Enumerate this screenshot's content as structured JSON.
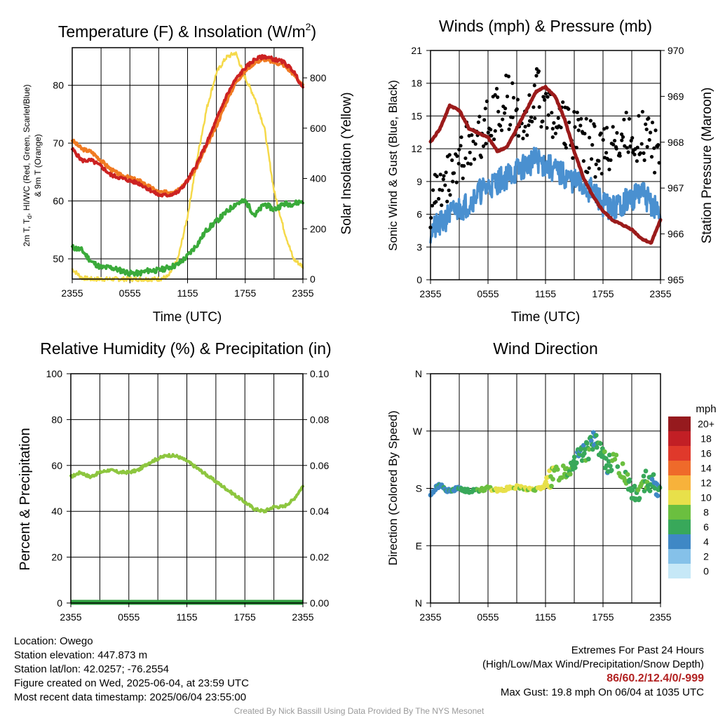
{
  "colors": {
    "red": "#cc2222",
    "orange": "#f07a22",
    "green": "#3aaa3a",
    "yellow": "#f5d94a",
    "blue": "#4a90d0",
    "black": "#000000",
    "maroon": "#9b1b1b",
    "rh": "#8dc63f",
    "precip": "#2e9e3e"
  },
  "x_ticks": [
    "2355",
    "0555",
    "1155",
    "1755",
    "2355"
  ],
  "charts": {
    "temp": {
      "title": "Temperature (F) & Insolation (W/m",
      "title_sup": "2",
      "title_close": ")",
      "ylabel_left_line1": "2m T, T",
      "ylabel_left_sub": "d",
      "ylabel_left_line1_rest": ", HI/WC (Red, Green, Scarlet/Blue)",
      "ylabel_left_line2": "& 9m T (Orange)",
      "ylabel_right": "Solar Insolation (Yellow)",
      "xlabel": "Time (UTC)",
      "left_ticks": [
        "50",
        "60",
        "70",
        "80"
      ],
      "right_ticks": [
        "0",
        "200",
        "400",
        "600",
        "800"
      ]
    },
    "wind": {
      "title": "Winds (mph) & Pressure (mb)",
      "ylabel_left": "Sonic Wind & Gust (Blue, Black)",
      "ylabel_right": "Station Pressure (Maroon)",
      "xlabel": "Time (UTC)",
      "left_ticks": [
        "0",
        "3",
        "6",
        "9",
        "12",
        "15",
        "18",
        "21"
      ],
      "right_ticks": [
        "965",
        "966",
        "967",
        "968",
        "969",
        "970"
      ]
    },
    "rh": {
      "title": "Relative Humidity (%) & Precipitation (in)",
      "ylabel_left": "Percent & Precipitation",
      "left_ticks": [
        "0",
        "20",
        "40",
        "60",
        "80",
        "100"
      ],
      "right_ticks": [
        "0.00",
        "0.02",
        "0.04",
        "0.06",
        "0.08",
        "0.10"
      ]
    },
    "dir": {
      "title": "Wind Direction",
      "ylabel_left": "Direction (Colored By Speed)",
      "left_ticks": [
        "N",
        "E",
        "S",
        "W",
        "N"
      ],
      "legend_title": "mph",
      "legend_labels": [
        "0",
        "2",
        "4",
        "6",
        "8",
        "10",
        "12",
        "14",
        "16",
        "18",
        "20+"
      ],
      "legend_colors": [
        "#c6e8f7",
        "#85c1e9",
        "#3f88c5",
        "#38a85a",
        "#6bbf3f",
        "#e8e04a",
        "#f7b23b",
        "#ef6a2a",
        "#e0392b",
        "#c21f25",
        "#961a1e"
      ]
    }
  },
  "chart_data": [
    {
      "type": "line",
      "title": "Temperature (F) & Insolation (W/m2)",
      "xlabel": "Time (UTC)",
      "ylabel": "2m T, Td, HI/WC (Red, Green, Scarlet/Blue) & 9m T (Orange)",
      "y2label": "Solar Insolation (Yellow)",
      "x": [
        0,
        1,
        2,
        3,
        4,
        5,
        6,
        7,
        8,
        9,
        10,
        11,
        12,
        13,
        14,
        15,
        16,
        17,
        18,
        19,
        20,
        21,
        22,
        23,
        24
      ],
      "x_tick_labels": [
        "2355",
        "0555",
        "1155",
        "1755",
        "2355"
      ],
      "ylim": [
        46.5,
        86.5
      ],
      "y2lim": [
        0,
        920
      ],
      "series": [
        {
          "name": "2m T (Red)",
          "axis": "left",
          "values": [
            69,
            67,
            67,
            66,
            64.5,
            64,
            63.5,
            63,
            62,
            61,
            61,
            61.5,
            63.5,
            66.5,
            70,
            74,
            78,
            81,
            83,
            84.5,
            85,
            84.5,
            84,
            82.5,
            79.5
          ]
        },
        {
          "name": "9m T (Orange)",
          "axis": "left",
          "values": [
            70.5,
            69,
            68.5,
            67,
            65.5,
            64.5,
            64,
            63.5,
            62.5,
            61.5,
            61.5,
            62,
            63.5,
            66,
            69.5,
            73,
            77,
            80.5,
            82.5,
            84,
            84.5,
            84,
            83.5,
            82,
            80
          ]
        },
        {
          "name": "Td (Green)",
          "axis": "left",
          "values": [
            52,
            51.5,
            49.5,
            48.5,
            48.5,
            48,
            47.5,
            47.5,
            48,
            48,
            48.5,
            49,
            50.5,
            52.5,
            55,
            56.5,
            58,
            59.5,
            60,
            57.5,
            59.5,
            58.5,
            59.5,
            59.5,
            60
          ]
        },
        {
          "name": "Solar Insolation (Yellow)",
          "axis": "right",
          "values": [
            40,
            5,
            0,
            0,
            0,
            0,
            0,
            0,
            0,
            0,
            10,
            80,
            250,
            480,
            680,
            820,
            880,
            900,
            800,
            720,
            600,
            350,
            200,
            80,
            50
          ]
        }
      ]
    },
    {
      "type": "scatter",
      "title": "Winds (mph) & Pressure (mb)",
      "xlabel": "Time (UTC)",
      "ylabel": "Sonic Wind & Gust (Blue, Black)",
      "y2label": "Station Pressure (Maroon)",
      "x": [
        0,
        1,
        2,
        3,
        4,
        5,
        6,
        7,
        8,
        9,
        10,
        11,
        12,
        13,
        14,
        15,
        16,
        17,
        18,
        19,
        20,
        21,
        22,
        23,
        24
      ],
      "x_tick_labels": [
        "2355",
        "0555",
        "1155",
        "1755",
        "2355"
      ],
      "ylim": [
        0,
        21
      ],
      "y2lim": [
        965,
        970
      ],
      "series": [
        {
          "name": "Sonic Wind (Blue)",
          "axis": "left",
          "values": [
            4.5,
            5,
            6,
            6.5,
            7,
            8,
            8.5,
            9,
            9.5,
            10,
            10.5,
            11,
            10.5,
            10,
            9.5,
            9,
            8.5,
            8,
            7,
            6.5,
            7,
            7.5,
            8,
            7,
            6
          ]
        },
        {
          "name": "Gust (Black)",
          "axis": "left",
          "values": [
            6.5,
            8,
            9.5,
            11,
            12.5,
            13.5,
            14,
            15.5,
            16.5,
            15,
            15.5,
            17,
            16,
            15,
            14,
            13,
            12.5,
            12,
            11.5,
            12.5,
            13,
            13.5,
            13,
            12.5,
            11.5
          ]
        },
        {
          "name": "Station Pressure (Maroon)",
          "axis": "right",
          "values": [
            968,
            968.3,
            968.8,
            968.7,
            968.3,
            968.2,
            968.1,
            967.8,
            967.9,
            968.3,
            968.7,
            969.1,
            969.2,
            969.0,
            968.5,
            967.8,
            967.2,
            966.8,
            966.5,
            966.3,
            966.2,
            966.1,
            965.9,
            965.8,
            966.3
          ]
        }
      ]
    },
    {
      "type": "line",
      "title": "Relative Humidity (%) & Precipitation (in)",
      "ylabel": "Percent & Precipitation",
      "x": [
        0,
        1,
        2,
        3,
        4,
        5,
        6,
        7,
        8,
        9,
        10,
        11,
        12,
        13,
        14,
        15,
        16,
        17,
        18,
        19,
        20,
        21,
        22,
        23,
        24
      ],
      "x_tick_labels": [
        "2355",
        "0555",
        "1155",
        "1755",
        "2355"
      ],
      "ylim": [
        0,
        100
      ],
      "y2lim": [
        0,
        0.1
      ],
      "series": [
        {
          "name": "Relative Humidity",
          "axis": "left",
          "values": [
            55,
            57,
            55,
            57,
            58,
            57,
            57,
            58,
            61,
            63,
            64.5,
            64,
            62,
            59,
            56,
            53,
            50,
            47,
            44,
            41,
            40,
            42,
            42,
            45,
            51
          ]
        },
        {
          "name": "Precipitation",
          "axis": "right",
          "values": [
            0,
            0,
            0,
            0,
            0,
            0,
            0,
            0,
            0,
            0,
            0,
            0,
            0,
            0,
            0,
            0,
            0,
            0,
            0,
            0,
            0,
            0,
            0,
            0,
            0
          ]
        }
      ]
    },
    {
      "type": "scatter",
      "title": "Wind Direction",
      "ylabel": "Direction (Colored By Speed)",
      "x_tick_labels": [
        "2355",
        "0555",
        "1155",
        "1755",
        "2355"
      ],
      "y_tick_labels": [
        "N",
        "E",
        "S",
        "W",
        "N"
      ],
      "ylim": [
        0,
        360
      ],
      "legend_title": "mph",
      "x": [
        0,
        0.5,
        1,
        1.5,
        2,
        2.5,
        3,
        3.5,
        4,
        5,
        6,
        7,
        8,
        9,
        10,
        11,
        12,
        12.5,
        13,
        14,
        14.5,
        15,
        15.5,
        16,
        16.5,
        17,
        17.5,
        18,
        18.5,
        19,
        20,
        20.5,
        21,
        21.5,
        22,
        22.5,
        23,
        23.5,
        24
      ],
      "series": [
        {
          "name": "Direction",
          "values": [
            170,
            180,
            185,
            180,
            175,
            178,
            180,
            178,
            176,
            178,
            180,
            178,
            180,
            182,
            180,
            178,
            185,
            195,
            205,
            210,
            215,
            225,
            230,
            235,
            240,
            255,
            245,
            230,
            215,
            225,
            210,
            200,
            175,
            170,
            180,
            195,
            190,
            185,
            180
          ]
        },
        {
          "name": "Speed (mph)",
          "values": [
            3,
            4,
            5,
            4,
            5,
            4,
            5,
            6,
            6,
            7,
            8,
            10,
            10,
            9,
            10,
            9,
            10,
            9,
            8,
            8,
            7,
            6,
            5,
            6,
            7,
            4,
            6,
            7,
            5,
            7,
            8,
            7,
            6,
            6,
            7,
            7,
            6,
            5,
            5
          ]
        }
      ]
    }
  ],
  "info": {
    "location": "Location: Owego",
    "elevation": "Station elevation: 447.873 m",
    "latlon": "Station lat/lon: 42.0257; -76.2554",
    "created": "Figure created on Wed, 2025-06-04, at 23:59 UTC",
    "recent": "Most recent data timestamp: 2025/06/04 23:55:00"
  },
  "extremes": {
    "title": "Extremes For Past 24 Hours",
    "subtitle": "(High/Low/Max Wind/Precipitation/Snow Depth)",
    "values": "86/60.2/12.4/0/-999",
    "max_gust": "Max Gust: 19.8 mph On 06/04 at 1035 UTC"
  },
  "credit": "Created By Nick Bassill Using Data Provided By The NYS Mesonet"
}
